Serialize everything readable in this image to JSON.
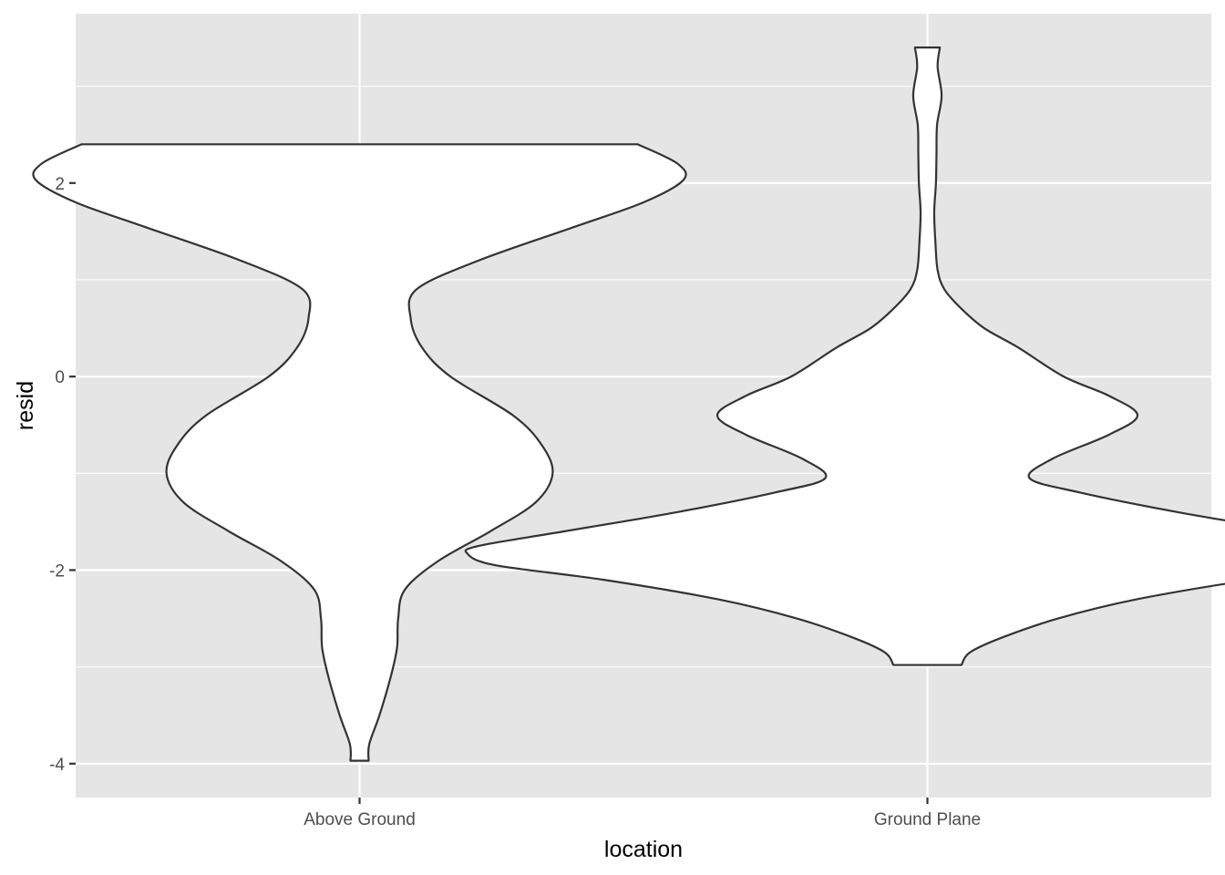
{
  "chart_data": {
    "type": "violin",
    "title": "",
    "xlabel": "location",
    "ylabel": "resid",
    "categories": [
      "Above Ground",
      "Ground Plane"
    ],
    "ylim": [
      -4.35,
      3.75
    ],
    "y_ticks": [
      -4,
      -2,
      0,
      2
    ],
    "y_tick_labels": [
      "-4",
      "-2",
      "0",
      "2"
    ],
    "grid": true,
    "legend": "none",
    "colors": {
      "panel_background": "#e5e5e5",
      "grid": "#ffffff",
      "violin_fill": "#ffffff",
      "violin_outline": "#333333",
      "tick_label": "#4d4d4d",
      "axis_title": "#000000"
    },
    "violins": [
      {
        "category": "Above Ground",
        "y_range": [
          -3.97,
          2.4
        ],
        "profile": [
          [
            2.4,
            0.49
          ],
          [
            2.2,
            0.56
          ],
          [
            2.03,
            0.57
          ],
          [
            1.8,
            0.5
          ],
          [
            1.55,
            0.38
          ],
          [
            1.2,
            0.21
          ],
          [
            0.9,
            0.1
          ],
          [
            0.6,
            0.09
          ],
          [
            0.3,
            0.11
          ],
          [
            0.0,
            0.16
          ],
          [
            -0.4,
            0.27
          ],
          [
            -0.7,
            0.32
          ],
          [
            -1.0,
            0.34
          ],
          [
            -1.3,
            0.31
          ],
          [
            -1.6,
            0.23
          ],
          [
            -1.9,
            0.14
          ],
          [
            -2.2,
            0.08
          ],
          [
            -2.5,
            0.068
          ],
          [
            -2.8,
            0.066
          ],
          [
            -3.1,
            0.055
          ],
          [
            -3.5,
            0.035
          ],
          [
            -3.8,
            0.017
          ],
          [
            -3.97,
            0.016
          ]
        ]
      },
      {
        "category": "Ground Plane",
        "y_range": [
          -2.98,
          3.4
        ],
        "profile": [
          [
            3.4,
            0.022
          ],
          [
            3.2,
            0.018
          ],
          [
            2.9,
            0.025
          ],
          [
            2.6,
            0.017
          ],
          [
            2.3,
            0.016
          ],
          [
            2.0,
            0.015
          ],
          [
            1.7,
            0.012
          ],
          [
            1.4,
            0.014
          ],
          [
            1.1,
            0.018
          ],
          [
            0.9,
            0.03
          ],
          [
            0.7,
            0.06
          ],
          [
            0.5,
            0.1
          ],
          [
            0.3,
            0.16
          ],
          [
            0.0,
            0.24
          ],
          [
            -0.2,
            0.32
          ],
          [
            -0.4,
            0.37
          ],
          [
            -0.6,
            0.32
          ],
          [
            -0.85,
            0.22
          ],
          [
            -1.05,
            0.18
          ],
          [
            -1.2,
            0.27
          ],
          [
            -1.4,
            0.44
          ],
          [
            -1.6,
            0.64
          ],
          [
            -1.75,
            0.79
          ],
          [
            -1.83,
            0.81
          ],
          [
            -1.95,
            0.76
          ],
          [
            -2.1,
            0.57
          ],
          [
            -2.3,
            0.37
          ],
          [
            -2.5,
            0.23
          ],
          [
            -2.7,
            0.13
          ],
          [
            -2.85,
            0.075
          ],
          [
            -2.98,
            0.06
          ]
        ]
      }
    ]
  }
}
